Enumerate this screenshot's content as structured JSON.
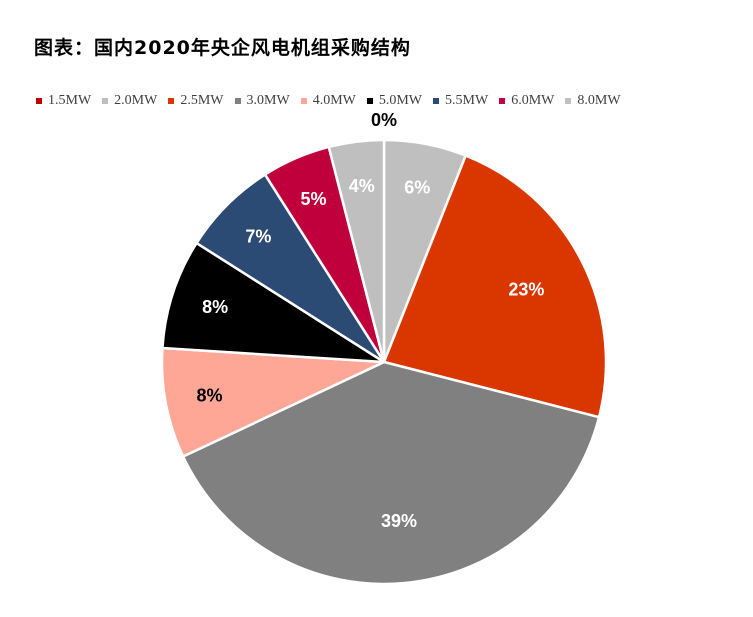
{
  "chart_data": {
    "type": "pie",
    "title": "图表：国内2020年央企风电机组采购结构",
    "start_angle_deg": 0,
    "direction": "clockwise",
    "label_colors": {
      "light": "#ffffff",
      "dark": "#000000"
    },
    "slices": [
      {
        "label": "1.5MW",
        "value": 0,
        "display": "0%",
        "color": "#C00000",
        "label_color": "dark"
      },
      {
        "label": "2.0MW",
        "value": 6,
        "display": "6%",
        "color": "#BFBFBF",
        "label_color": "light"
      },
      {
        "label": "2.5MW",
        "value": 23,
        "display": "23%",
        "color": "#D93600",
        "label_color": "light"
      },
      {
        "label": "3.0MW",
        "value": 39,
        "display": "39%",
        "color": "#808080",
        "label_color": "light"
      },
      {
        "label": "4.0MW",
        "value": 8,
        "display": "8%",
        "color": "#FFA797",
        "label_color": "dark"
      },
      {
        "label": "5.0MW",
        "value": 8,
        "display": "8%",
        "color": "#000000",
        "label_color": "light"
      },
      {
        "label": "5.5MW",
        "value": 7,
        "display": "7%",
        "color": "#2B4A74",
        "label_color": "light"
      },
      {
        "label": "6.0MW",
        "value": 5,
        "display": "5%",
        "color": "#C0003C",
        "label_color": "light"
      },
      {
        "label": "8.0MW",
        "value": 4,
        "display": "4%",
        "color": "#BFBFBF",
        "label_color": "light"
      }
    ]
  }
}
